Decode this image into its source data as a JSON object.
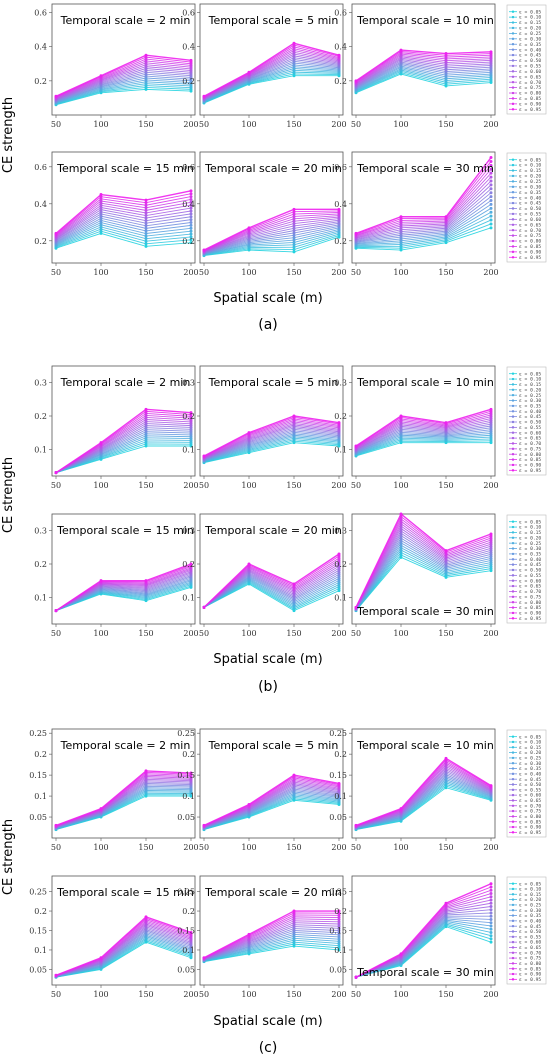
{
  "figure": {
    "ylabel": "CE strength",
    "xlabel": "Spatial scale (m)",
    "legend_entries": [
      "ε = 0.05",
      "ε = 0.10",
      "ε = 0.15",
      "ε = 0.20",
      "ε = 0.25",
      "ε = 0.30",
      "ε = 0.35",
      "ε = 0.40",
      "ε = 0.45",
      "ε = 0.50",
      "ε = 0.55",
      "ε = 0.60",
      "ε = 0.65",
      "ε = 0.70",
      "ε = 0.75",
      "ε = 0.80",
      "ε = 0.85",
      "ε = 0.90",
      "ε = 0.95"
    ],
    "colors": {
      "low": "#22d3df",
      "mid": "#8a7fe0",
      "high": "#ee22ee"
    }
  },
  "chart_data": [
    {
      "type": "line",
      "label": "(a)",
      "xticks": [
        50,
        100,
        150,
        200
      ],
      "panels": [
        {
          "title": "Temporal scale = 2 min",
          "ylim": [
            0,
            0.65
          ],
          "yticks": [
            0.2,
            0.4,
            0.6
          ],
          "low": [
            0.06,
            0.13,
            0.15,
            0.14
          ],
          "high": [
            0.11,
            0.23,
            0.35,
            0.32
          ]
        },
        {
          "title": "Temporal scale = 5 min",
          "ylim": [
            0,
            0.65
          ],
          "yticks": [
            0.2,
            0.4,
            0.6
          ],
          "low": [
            0.07,
            0.18,
            0.23,
            0.23
          ],
          "high": [
            0.11,
            0.25,
            0.42,
            0.35
          ]
        },
        {
          "title": "Temporal scale = 10 min",
          "ylim": [
            0,
            0.65
          ],
          "yticks": [
            0.2,
            0.4,
            0.6
          ],
          "low": [
            0.13,
            0.24,
            0.17,
            0.19
          ],
          "high": [
            0.2,
            0.38,
            0.36,
            0.37
          ]
        },
        {
          "title": "Temporal scale = 15 min",
          "ylim": [
            0.08,
            0.68
          ],
          "yticks": [
            0.2,
            0.4,
            0.6
          ],
          "low": [
            0.16,
            0.24,
            0.17,
            0.19
          ],
          "high": [
            0.24,
            0.45,
            0.42,
            0.47
          ]
        },
        {
          "title": "Temporal scale = 20 min",
          "ylim": [
            0.08,
            0.68
          ],
          "yticks": [
            0.2,
            0.4,
            0.6
          ],
          "low": [
            0.12,
            0.15,
            0.14,
            0.22
          ],
          "high": [
            0.15,
            0.27,
            0.37,
            0.37
          ]
        },
        {
          "title": "Temporal scale = 30 min",
          "ylim": [
            0.08,
            0.68
          ],
          "yticks": [
            0.2,
            0.4,
            0.6
          ],
          "low": [
            0.16,
            0.15,
            0.19,
            0.27
          ],
          "high": [
            0.24,
            0.33,
            0.33,
            0.65
          ]
        }
      ]
    },
    {
      "type": "line",
      "label": "(b)",
      "xticks": [
        50,
        100,
        150,
        200
      ],
      "panels": [
        {
          "title": "Temporal scale = 2 min",
          "ylim": [
            0.02,
            0.35
          ],
          "yticks": [
            0.1,
            0.2,
            0.3
          ],
          "low": [
            0.03,
            0.07,
            0.11,
            0.11
          ],
          "high": [
            0.03,
            0.12,
            0.22,
            0.21
          ]
        },
        {
          "title": "Temporal scale = 5 min",
          "ylim": [
            0.02,
            0.35
          ],
          "yticks": [
            0.1,
            0.2,
            0.3
          ],
          "low": [
            0.06,
            0.09,
            0.12,
            0.11
          ],
          "high": [
            0.08,
            0.15,
            0.2,
            0.18
          ]
        },
        {
          "title": "Temporal scale = 10 min",
          "ylim": [
            0.02,
            0.35
          ],
          "yticks": [
            0.1,
            0.2,
            0.3
          ],
          "low": [
            0.08,
            0.12,
            0.12,
            0.12
          ],
          "high": [
            0.11,
            0.2,
            0.18,
            0.22
          ]
        },
        {
          "title": "Temporal scale = 15 min",
          "ylim": [
            0.02,
            0.35
          ],
          "yticks": [
            0.1,
            0.2,
            0.3
          ],
          "low": [
            0.06,
            0.11,
            0.09,
            0.13
          ],
          "high": [
            0.06,
            0.15,
            0.15,
            0.2
          ]
        },
        {
          "title": "Temporal scale = 20 min",
          "ylim": [
            0.02,
            0.35
          ],
          "yticks": [
            0.1,
            0.2,
            0.3
          ],
          "low": [
            0.07,
            0.14,
            0.06,
            0.12
          ],
          "high": [
            0.07,
            0.2,
            0.14,
            0.23
          ]
        },
        {
          "title": "Temporal scale = 30 min",
          "title_pos": "bottom",
          "ylim": [
            0.02,
            0.35
          ],
          "yticks": [
            0.1,
            0.2,
            0.3
          ],
          "low": [
            0.06,
            0.22,
            0.16,
            0.18
          ],
          "high": [
            0.07,
            0.35,
            0.24,
            0.29
          ]
        }
      ]
    },
    {
      "type": "line",
      "label": "(c)",
      "xticks": [
        50,
        100,
        150,
        200
      ],
      "panels": [
        {
          "title": "Temporal scale = 2 min",
          "ylim": [
            0,
            0.26
          ],
          "yticks": [
            0.05,
            0.1,
            0.15,
            0.2,
            0.25
          ],
          "low": [
            0.02,
            0.05,
            0.1,
            0.1
          ],
          "high": [
            0.03,
            0.07,
            0.16,
            0.155
          ]
        },
        {
          "title": "Temporal scale = 5 min",
          "ylim": [
            0,
            0.26
          ],
          "yticks": [
            0.05,
            0.1,
            0.15,
            0.2,
            0.25
          ],
          "low": [
            0.02,
            0.05,
            0.09,
            0.08
          ],
          "high": [
            0.03,
            0.08,
            0.15,
            0.13
          ]
        },
        {
          "title": "Temporal scale = 10 min",
          "ylim": [
            0,
            0.26
          ],
          "yticks": [
            0.05,
            0.1,
            0.15,
            0.2,
            0.25
          ],
          "low": [
            0.02,
            0.04,
            0.12,
            0.09
          ],
          "high": [
            0.03,
            0.07,
            0.19,
            0.125
          ]
        },
        {
          "title": "Temporal scale = 15 min",
          "ylim": [
            0.01,
            0.29
          ],
          "yticks": [
            0.05,
            0.1,
            0.15,
            0.2,
            0.25
          ],
          "low": [
            0.03,
            0.05,
            0.12,
            0.08
          ],
          "high": [
            0.035,
            0.08,
            0.185,
            0.145
          ]
        },
        {
          "title": "Temporal scale = 20 min",
          "ylim": [
            0.01,
            0.29
          ],
          "yticks": [
            0.05,
            0.1,
            0.15,
            0.2,
            0.25
          ],
          "low": [
            0.07,
            0.09,
            0.11,
            0.1
          ],
          "high": [
            0.08,
            0.14,
            0.2,
            0.2
          ]
        },
        {
          "title": "Temporal scale = 30 min",
          "title_pos": "bottom",
          "ylim": [
            0.01,
            0.29
          ],
          "yticks": [
            0.05,
            0.1,
            0.15,
            0.2,
            0.25
          ],
          "low": [
            0.03,
            0.06,
            0.16,
            0.12
          ],
          "high": [
            0.03,
            0.09,
            0.22,
            0.27
          ]
        }
      ]
    }
  ]
}
